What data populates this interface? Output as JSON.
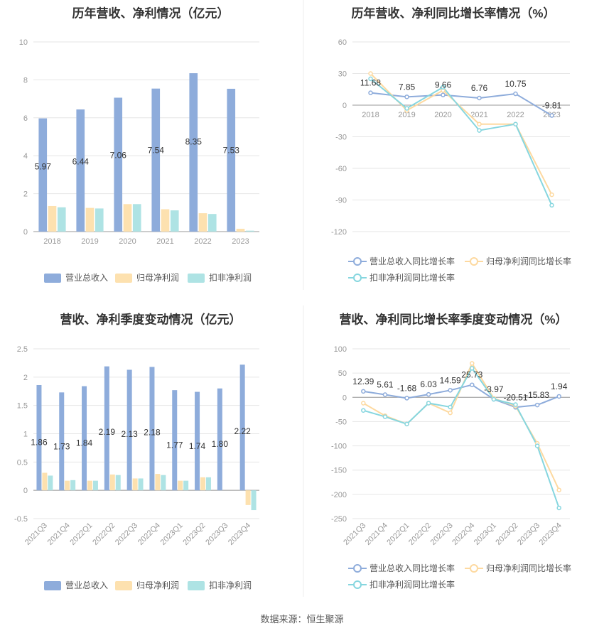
{
  "colors": {
    "revenue": "#8eacdb",
    "net_profit": "#fde1af",
    "deducted_profit": "#aee3e4",
    "revenue_line": "#8eacdb",
    "net_line": "#fdd9a0",
    "deducted_line": "#86d6df"
  },
  "source": "数据来源：恒生聚源",
  "chart_data": [
    {
      "id": "annual-values",
      "type": "bar",
      "title": "历年营收、净利情况（亿元）",
      "categories": [
        "2018",
        "2019",
        "2020",
        "2021",
        "2022",
        "2023"
      ],
      "ylim": [
        0,
        10
      ],
      "yticks": [
        0,
        2,
        4,
        6,
        8,
        10
      ],
      "ytick_labels": [
        "0",
        "2",
        "4",
        "6",
        "8",
        "10"
      ],
      "series": [
        {
          "name": "营业总收入",
          "values": [
            5.97,
            6.44,
            7.06,
            7.54,
            8.35,
            7.53
          ],
          "labels": [
            "5.97",
            "6.44",
            "7.06",
            "7.54",
            "8.35",
            "7.53"
          ]
        },
        {
          "name": "归母净利润",
          "values": [
            1.35,
            1.25,
            1.45,
            1.18,
            0.97,
            0.15
          ]
        },
        {
          "name": "扣非净利润",
          "values": [
            1.28,
            1.22,
            1.45,
            1.12,
            0.93,
            0.05
          ]
        }
      ],
      "legend": [
        "营业总收入",
        "归母净利润",
        "扣非净利润"
      ],
      "legend_position": "bottom"
    },
    {
      "id": "annual-growth",
      "type": "line",
      "title": "历年营收、净利同比增长率情况（%）",
      "categories": [
        "2018",
        "2019",
        "2020",
        "2021",
        "2022",
        "2023"
      ],
      "ylim": [
        -120,
        60
      ],
      "yticks": [
        -120,
        -90,
        -60,
        -30,
        0,
        30,
        60
      ],
      "ytick_labels": [
        "-120",
        "-90",
        "-60",
        "-30",
        "0",
        "30",
        "60"
      ],
      "series": [
        {
          "name": "营业总收入同比增长率",
          "values": [
            11.68,
            7.85,
            9.66,
            6.76,
            10.75,
            -9.81
          ],
          "labels": [
            "11.68",
            "7.85",
            "9.66",
            "6.76",
            "10.75",
            "-9.81"
          ]
        },
        {
          "name": "归母净利润同比增长率",
          "values": [
            30,
            -5,
            14,
            -18,
            -18,
            -85
          ]
        },
        {
          "name": "扣非净利润同比增长率",
          "values": [
            25,
            -3,
            17,
            -24,
            -18,
            -95
          ]
        }
      ],
      "legend": [
        "营业总收入同比增长率",
        "归母净利润同比增长率",
        "扣非净利润同比增长率"
      ],
      "legend_position": "bottom"
    },
    {
      "id": "quarterly-values",
      "type": "bar",
      "title": "营收、净利季度变动情况（亿元）",
      "categories": [
        "2021Q3",
        "2021Q4",
        "2022Q1",
        "2022Q2",
        "2022Q3",
        "2022Q4",
        "2023Q1",
        "2023Q2",
        "2023Q3",
        "2023Q4"
      ],
      "ylim": [
        -0.5,
        2.5
      ],
      "yticks": [
        -0.5,
        0,
        0.5,
        1,
        1.5,
        2,
        2.5
      ],
      "ytick_labels": [
        "-0.5",
        "0",
        "0.5",
        "1",
        "1.5",
        "2",
        "2.5"
      ],
      "series": [
        {
          "name": "营业总收入",
          "values": [
            1.86,
            1.73,
            1.84,
            2.19,
            2.13,
            2.18,
            1.77,
            1.74,
            1.8,
            2.22
          ],
          "labels": [
            "1.86",
            "1.73",
            "1.84",
            "2.19",
            "2.13",
            "2.18",
            "1.77",
            "1.74",
            "1.80",
            "2.22"
          ]
        },
        {
          "name": "归母净利润",
          "values": [
            0.31,
            0.17,
            0.17,
            0.28,
            0.21,
            0.29,
            0.17,
            0.23,
            0.0,
            -0.26
          ]
        },
        {
          "name": "扣非净利润",
          "values": [
            0.26,
            0.18,
            0.17,
            0.27,
            0.21,
            0.27,
            0.17,
            0.23,
            0.0,
            -0.35
          ]
        }
      ],
      "legend": [
        "营业总收入",
        "归母净利润",
        "扣非净利润"
      ],
      "legend_position": "bottom"
    },
    {
      "id": "quarterly-growth",
      "type": "line",
      "title": "营收、净利同比增长率季度变动情况（%）",
      "categories": [
        "2021Q3",
        "2021Q4",
        "2022Q1",
        "2022Q2",
        "2022Q3",
        "2022Q4",
        "2023Q1",
        "2023Q2",
        "2023Q3",
        "2023Q4"
      ],
      "ylim": [
        -250,
        100
      ],
      "yticks": [
        -250,
        -200,
        -150,
        -100,
        -50,
        0,
        50,
        100
      ],
      "ytick_labels": [
        "-250",
        "-200",
        "-150",
        "-100",
        "-50",
        "0",
        "50",
        "100"
      ],
      "series": [
        {
          "name": "营业总收入同比增长率",
          "values": [
            12.39,
            5.61,
            -1.68,
            6.03,
            14.59,
            25.73,
            -3.97,
            -20.51,
            -15.83,
            1.94
          ],
          "labels": [
            "12.39",
            "5.61",
            "-1.68",
            "6.03",
            "14.59",
            "25.73",
            "-3.97",
            "-20.51",
            "-15.83",
            "1.94"
          ]
        },
        {
          "name": "归母净利润同比增长率",
          "values": [
            -12,
            -38,
            -55,
            -12,
            -32,
            70,
            -2,
            -18,
            -95,
            -191
          ]
        },
        {
          "name": "扣非净利润同比增长率",
          "values": [
            -27,
            -40,
            -55,
            -12,
            -20,
            60,
            -4,
            -15,
            -100,
            -228
          ]
        }
      ],
      "legend": [
        "营业总收入同比增长率",
        "归母净利润同比增长率",
        "扣非净利润同比增长率"
      ],
      "legend_position": "bottom"
    }
  ]
}
